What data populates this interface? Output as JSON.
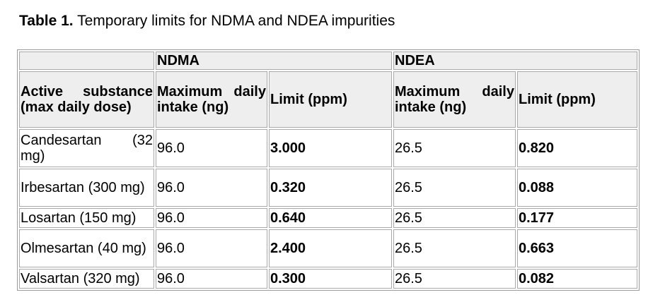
{
  "caption": {
    "label": "Table 1.",
    "text": "Temporary limits for NDMA and NDEA impurities"
  },
  "groups": {
    "ndma": "NDMA",
    "ndea": "NDEA"
  },
  "headers": {
    "substance": "Active substance (max daily dose)",
    "ndma_intake": "Maximum daily intake (ng)",
    "ndma_limit": "Limit (ppm)",
    "ndea_intake": "Maximum daily intake (ng)",
    "ndea_limit": "Limit (ppm)"
  },
  "rows": [
    {
      "substance": "Candesartan (32 mg)",
      "ndma_intake": "96.0",
      "ndma_limit": "3.000",
      "ndea_intake": "26.5",
      "ndea_limit": "0.820"
    },
    {
      "substance": "Irbesartan (300 mg)",
      "ndma_intake": "96.0",
      "ndma_limit": "0.320",
      "ndea_intake": "26.5",
      "ndea_limit": "0.088"
    },
    {
      "substance": "Losartan (150 mg)",
      "ndma_intake": "96.0",
      "ndma_limit": "0.640",
      "ndea_intake": "26.5",
      "ndea_limit": "0.177"
    },
    {
      "substance": "Olmesartan (40 mg)",
      "ndma_intake": "96.0",
      "ndma_limit": "2.400",
      "ndea_intake": "26.5",
      "ndea_limit": "0.663"
    },
    {
      "substance": "Valsartan (320 mg)",
      "ndma_intake": "96.0",
      "ndma_limit": "0.300",
      "ndea_intake": "26.5",
      "ndea_limit": "0.082"
    }
  ]
}
